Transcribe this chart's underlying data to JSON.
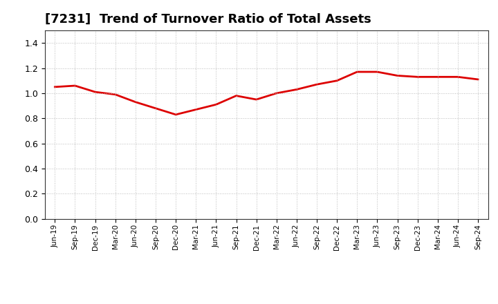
{
  "title": "[7231]  Trend of Turnover Ratio of Total Assets",
  "title_fontsize": 13,
  "line_color": "#dd0000",
  "line_width": 2.0,
  "background_color": "#ffffff",
  "plot_bg_color": "#ffffff",
  "grid_color": "#bbbbbb",
  "ylim": [
    0.0,
    1.5
  ],
  "yticks": [
    0.0,
    0.2,
    0.4,
    0.6,
    0.8,
    1.0,
    1.2,
    1.4
  ],
  "x_labels": [
    "Jun-19",
    "Sep-19",
    "Dec-19",
    "Mar-20",
    "Jun-20",
    "Sep-20",
    "Dec-20",
    "Mar-21",
    "Jun-21",
    "Sep-21",
    "Dec-21",
    "Mar-22",
    "Jun-22",
    "Sep-22",
    "Dec-22",
    "Mar-23",
    "Jun-23",
    "Sep-23",
    "Dec-23",
    "Mar-24",
    "Jun-24",
    "Sep-24"
  ],
  "values": [
    1.05,
    1.06,
    1.01,
    0.99,
    0.93,
    0.88,
    0.83,
    0.87,
    0.91,
    0.98,
    0.95,
    1.0,
    1.03,
    1.07,
    1.1,
    1.17,
    1.17,
    1.14,
    1.13,
    1.13,
    1.13,
    1.11
  ]
}
